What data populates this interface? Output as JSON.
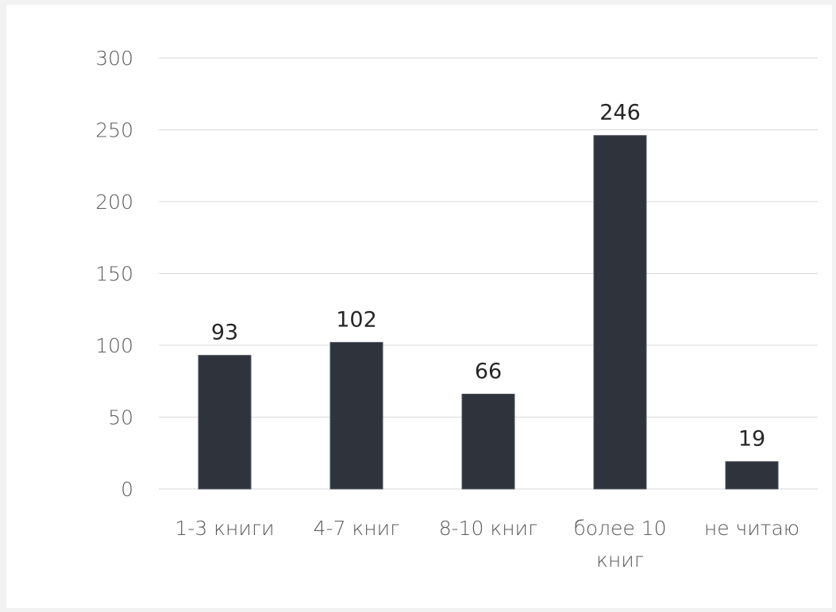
{
  "chart_data": {
    "type": "bar",
    "title": "",
    "xlabel": "",
    "ylabel": "",
    "categories": [
      [
        "1-3 книги"
      ],
      [
        "4-7 книг"
      ],
      [
        "8-10 книг"
      ],
      [
        "более 10",
        "книг"
      ],
      [
        "не читаю"
      ]
    ],
    "values": [
      93,
      102,
      66,
      246,
      19
    ],
    "ylim": [
      0,
      300
    ],
    "yticks": [
      "0",
      "50",
      "100",
      "150",
      "200",
      "250",
      "300"
    ],
    "grid": true,
    "legend": "none",
    "colors": {
      "bar": "#2f333c",
      "grid": "#d9d9d9",
      "background": "#ffffff",
      "page": "#f2f2f2"
    }
  }
}
